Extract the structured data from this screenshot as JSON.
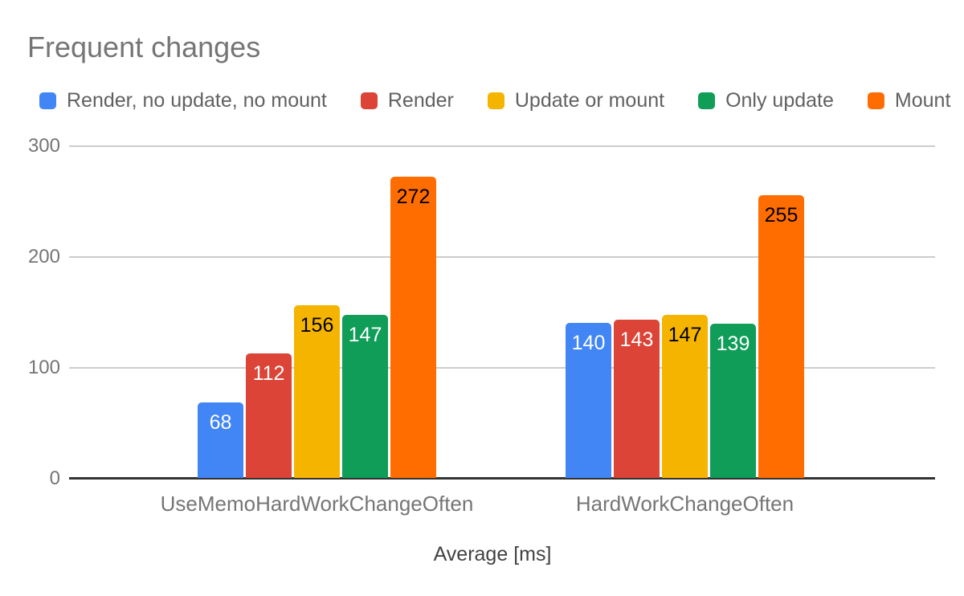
{
  "title": "Frequent changes",
  "colors": {
    "title_text": "#757575",
    "legend_text": "#616161",
    "tick_text": "#757575",
    "category_text": "#757575",
    "axis_title_text": "#424242",
    "gridline": "#cccccc",
    "baseline": "#333333",
    "background": "#ffffff"
  },
  "chart_data": {
    "type": "bar",
    "title": "Frequent changes",
    "categories": [
      "UseMemoHardWorkChangeOften",
      "HardWorkChangeOften"
    ],
    "series": [
      {
        "name": "Render, no update, no mount",
        "color": "#4285F4",
        "label_color": "#ffffff",
        "values": [
          68,
          140
        ]
      },
      {
        "name": "Render",
        "color": "#DB4437",
        "label_color": "#ffffff",
        "values": [
          112,
          143
        ]
      },
      {
        "name": "Update or mount",
        "color": "#F4B400",
        "label_color": "#000000",
        "values": [
          156,
          147
        ]
      },
      {
        "name": "Only update",
        "color": "#0F9D58",
        "label_color": "#ffffff",
        "values": [
          147,
          139
        ]
      },
      {
        "name": "Mount",
        "color": "#FF6D01",
        "label_color": "#000000",
        "values": [
          272,
          255
        ]
      }
    ],
    "xlabel": "Average [ms]",
    "ylabel": "",
    "ylim": [
      0,
      300
    ],
    "yticks": [
      0,
      100,
      200,
      300
    ],
    "grid": true,
    "legend_position": "top",
    "data_labels": true
  }
}
